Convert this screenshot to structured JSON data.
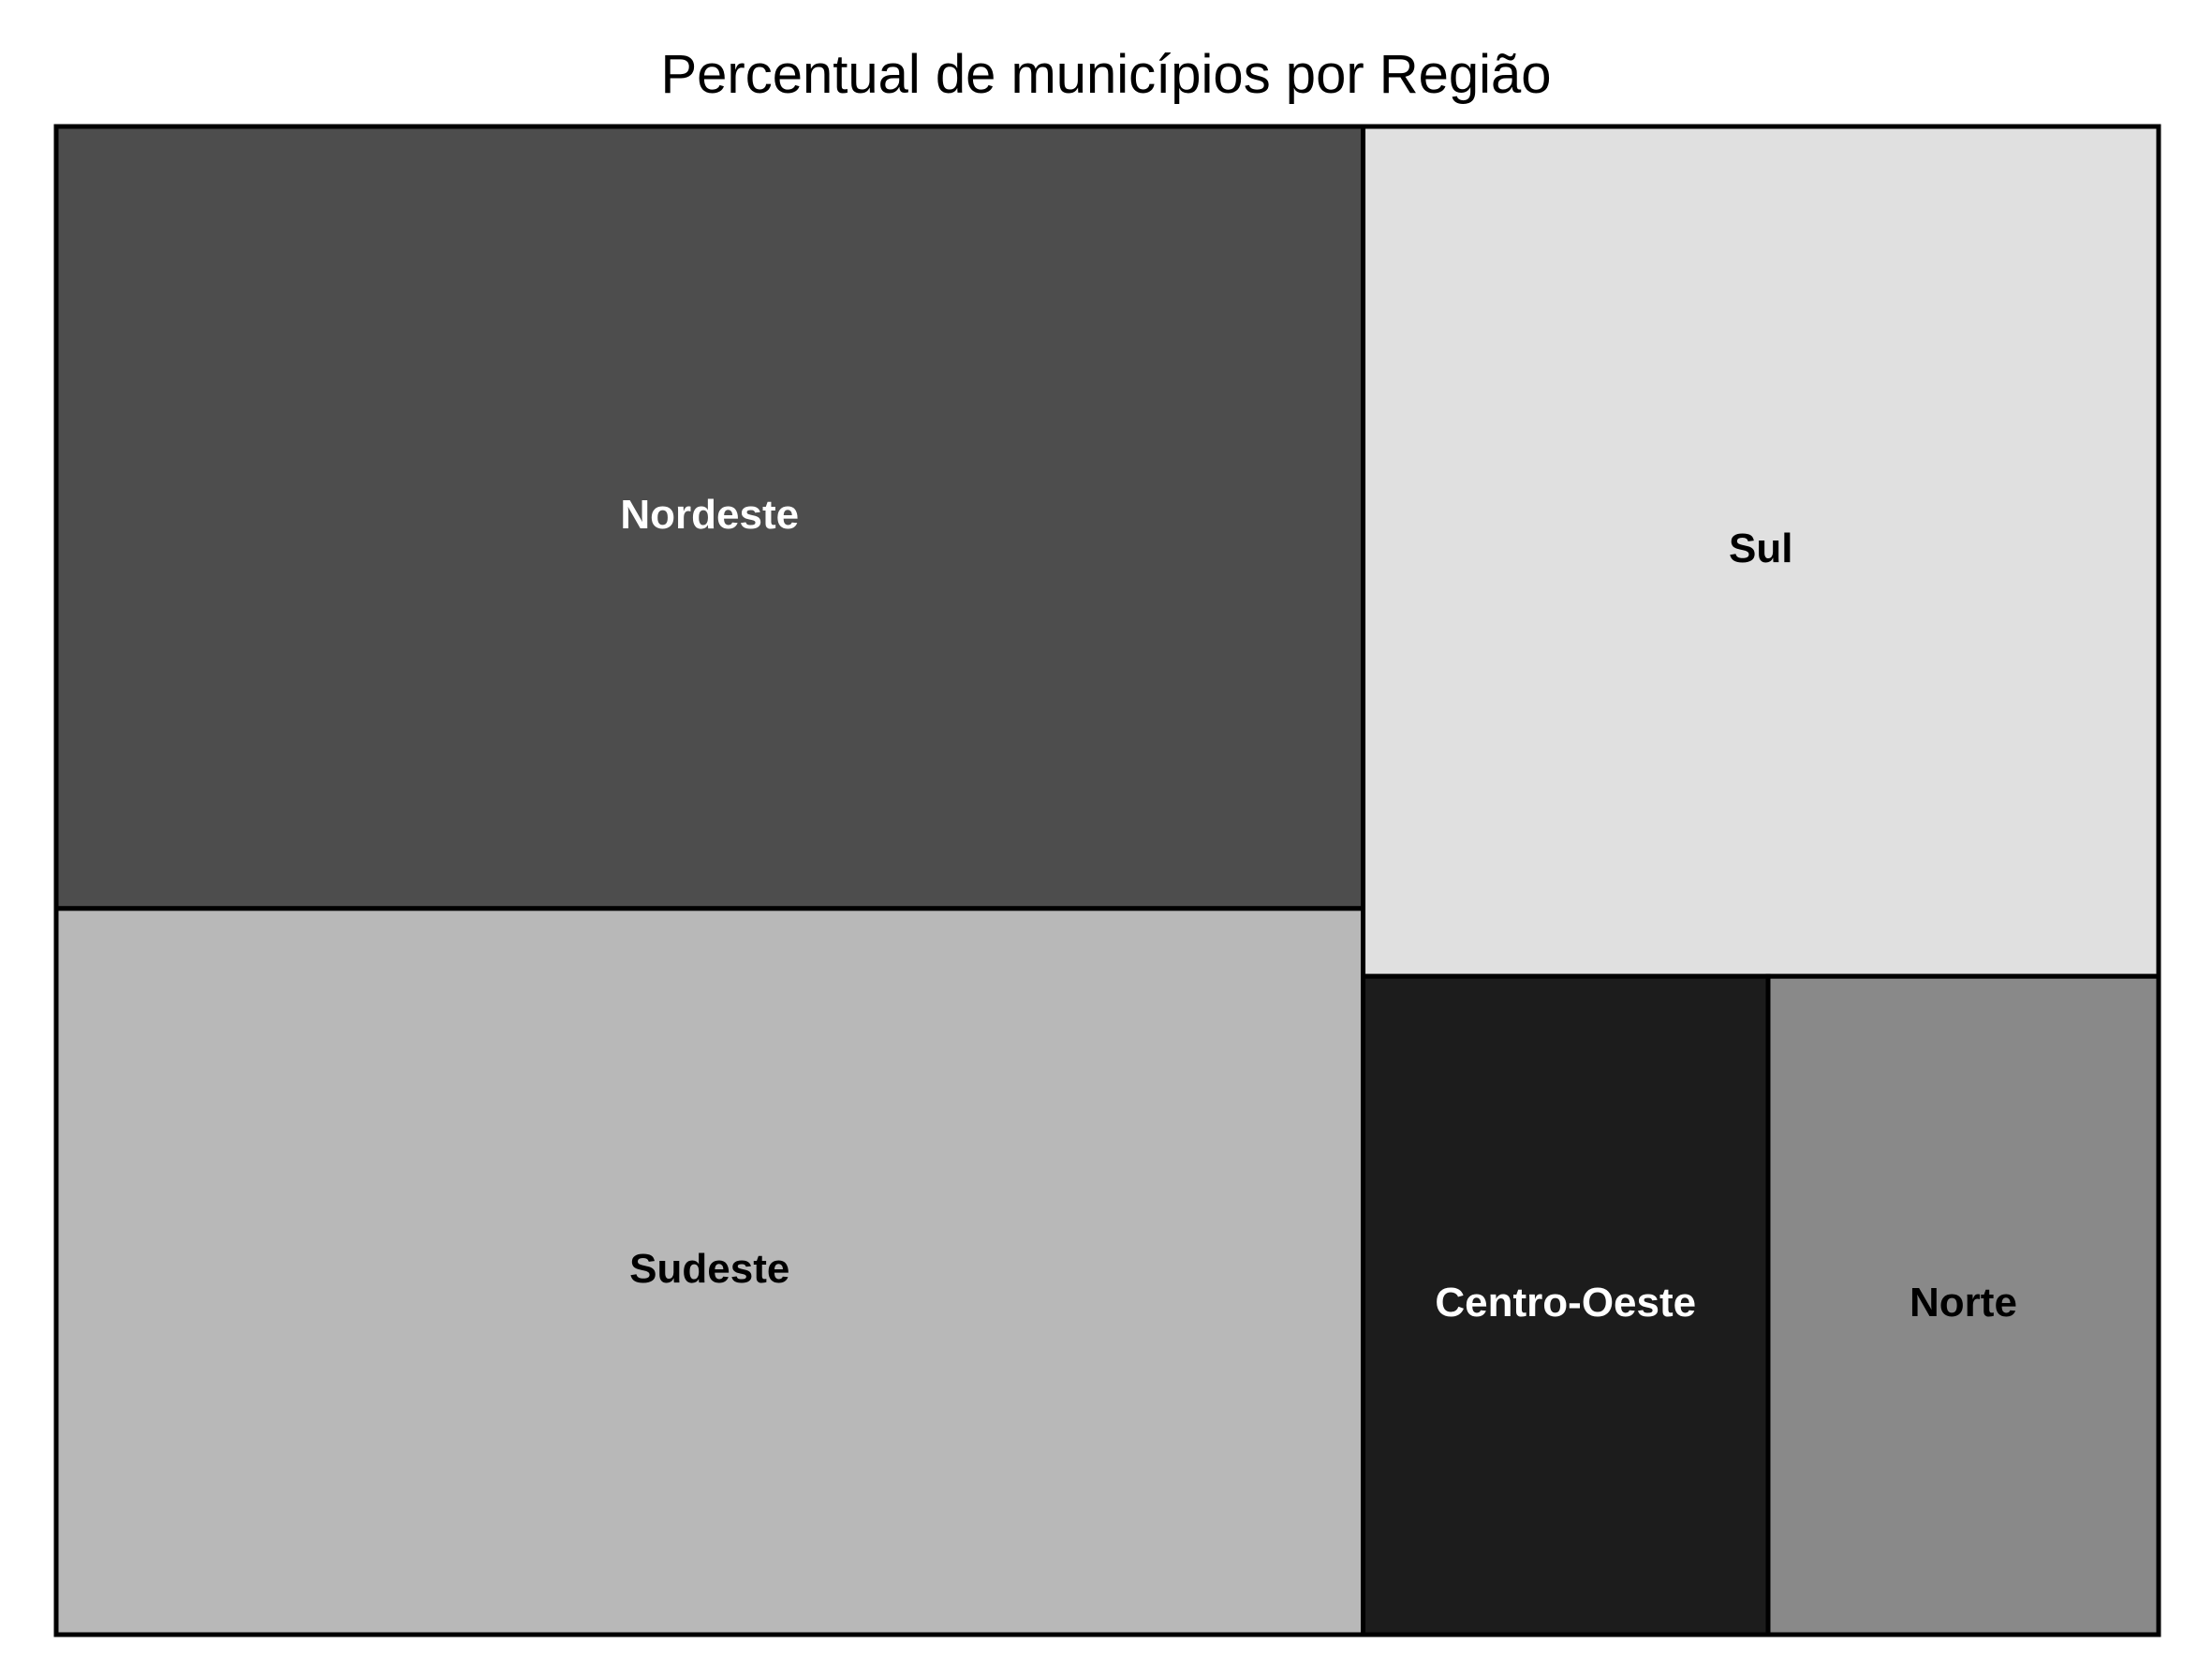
{
  "chart_data": {
    "type": "treemap",
    "title": "Percentual de municípios por Região",
    "categories": [
      "Nordeste",
      "Sudeste",
      "Sul",
      "Centro-Oeste",
      "Norte"
    ],
    "values": [
      32.2,
      29.9,
      21.3,
      8.4,
      8.1
    ],
    "colors": [
      "#4d4d4d",
      "#b8b8b8",
      "#e0e0e0",
      "#1c1c1c",
      "#898989"
    ],
    "label_colors": [
      "#ffffff",
      "#000000",
      "#000000",
      "#ffffff",
      "#000000"
    ],
    "legend": "none"
  }
}
